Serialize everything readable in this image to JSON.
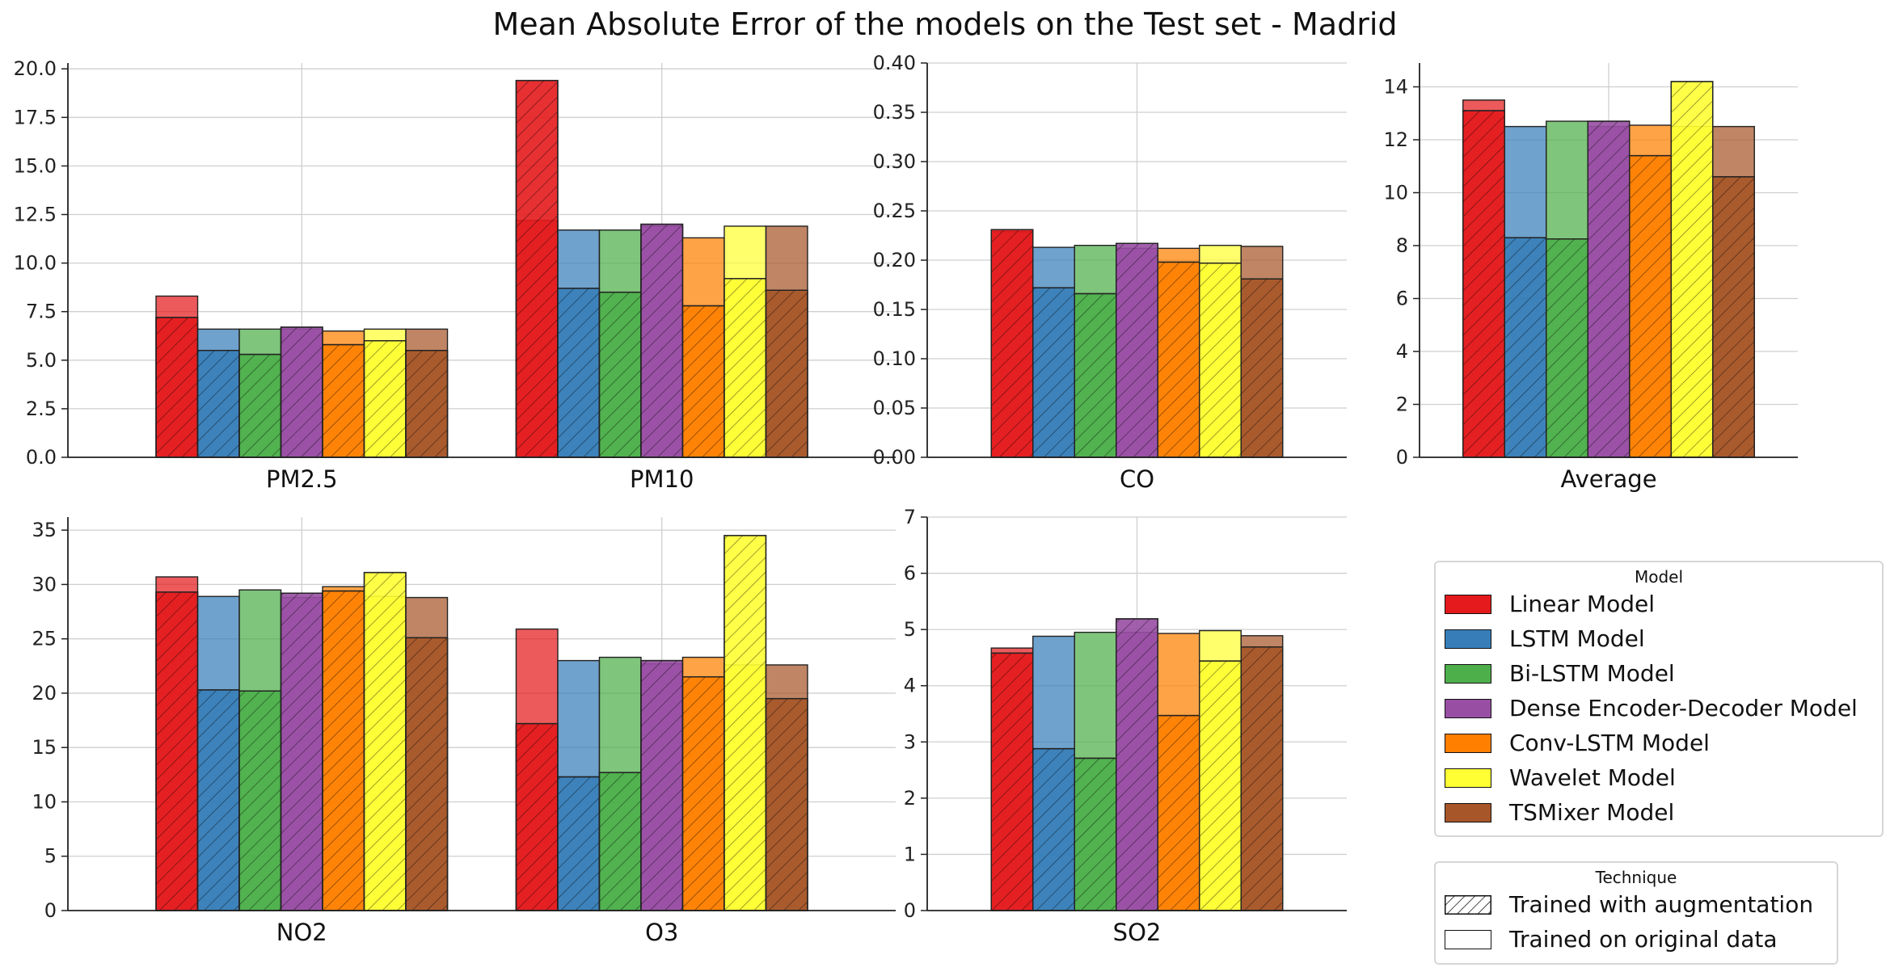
{
  "title": "Mean Absolute Error of the models on the Test set - Madrid",
  "colors": {
    "Linear Model": "#e41a1c",
    "LSTM Model": "#377eb8",
    "Bi-LSTM Model": "#4daf4a",
    "Dense Encoder-Decoder Model": "#984ea3",
    "Conv-LSTM Model": "#ff7f00",
    "Wavelet Model": "#ffff33",
    "TSMixer Model": "#a65628"
  },
  "legend_model": {
    "title": "Model",
    "items": [
      "Linear Model",
      "LSTM Model",
      "Bi-LSTM Model",
      "Dense Encoder-Decoder Model",
      "Conv-LSTM Model",
      "Wavelet Model",
      "TSMixer Model"
    ]
  },
  "legend_technique": {
    "title": "Technique",
    "augmented_label": "Trained with augmentation",
    "original_label": "Trained on original data"
  },
  "chart_data": [
    {
      "type": "bar",
      "stacked_overlay": true,
      "categories": [
        "PM2.5",
        "PM10"
      ],
      "ylim": [
        0,
        20.3
      ],
      "yticks": [
        "0.0",
        "2.5",
        "5.0",
        "7.5",
        "10.0",
        "12.5",
        "15.0",
        "17.5",
        "20.0"
      ],
      "grid": true,
      "series": [
        {
          "name": "Linear Model",
          "original": [
            8.3,
            12.2
          ],
          "augmented": [
            7.2,
            19.4
          ]
        },
        {
          "name": "LSTM Model",
          "original": [
            6.6,
            11.7
          ],
          "augmented": [
            5.5,
            8.7
          ]
        },
        {
          "name": "Bi-LSTM Model",
          "original": [
            6.6,
            11.7
          ],
          "augmented": [
            5.3,
            8.5
          ]
        },
        {
          "name": "Dense Encoder-Decoder Model",
          "original": [
            6.6,
            11.9
          ],
          "augmented": [
            6.7,
            12.0
          ]
        },
        {
          "name": "Conv-LSTM Model",
          "original": [
            6.5,
            11.3
          ],
          "augmented": [
            5.8,
            7.8
          ]
        },
        {
          "name": "Wavelet Model",
          "original": [
            6.6,
            11.9
          ],
          "augmented": [
            6.0,
            9.2
          ]
        },
        {
          "name": "TSMixer Model",
          "original": [
            6.6,
            11.9
          ],
          "augmented": [
            5.5,
            8.6
          ]
        }
      ]
    },
    {
      "type": "bar",
      "stacked_overlay": true,
      "categories": [
        "CO"
      ],
      "ylim": [
        0,
        0.4
      ],
      "yticks": [
        "0.00",
        "0.05",
        "0.10",
        "0.15",
        "0.20",
        "0.25",
        "0.30",
        "0.35",
        "0.40"
      ],
      "grid": true,
      "series": [
        {
          "name": "Linear Model",
          "original": [
            0.229
          ],
          "augmented": [
            0.231
          ]
        },
        {
          "name": "LSTM Model",
          "original": [
            0.213
          ],
          "augmented": [
            0.172
          ]
        },
        {
          "name": "Bi-LSTM Model",
          "original": [
            0.215
          ],
          "augmented": [
            0.166
          ]
        },
        {
          "name": "Dense Encoder-Decoder Model",
          "original": [
            0.212
          ],
          "augmented": [
            0.217
          ]
        },
        {
          "name": "Conv-LSTM Model",
          "original": [
            0.212
          ],
          "augmented": [
            0.198
          ]
        },
        {
          "name": "Wavelet Model",
          "original": [
            0.215
          ],
          "augmented": [
            0.197
          ]
        },
        {
          "name": "TSMixer Model",
          "original": [
            0.214
          ],
          "augmented": [
            0.181
          ]
        }
      ]
    },
    {
      "type": "bar",
      "stacked_overlay": true,
      "categories": [
        "Average"
      ],
      "ylim": [
        0,
        14.9
      ],
      "yticks": [
        "0",
        "2",
        "4",
        "6",
        "8",
        "10",
        "12",
        "14"
      ],
      "grid": true,
      "series": [
        {
          "name": "Linear Model",
          "original": [
            13.5
          ],
          "augmented": [
            13.1
          ]
        },
        {
          "name": "LSTM Model",
          "original": [
            12.5
          ],
          "augmented": [
            8.3
          ]
        },
        {
          "name": "Bi-LSTM Model",
          "original": [
            12.7
          ],
          "augmented": [
            8.25
          ]
        },
        {
          "name": "Dense Encoder-Decoder Model",
          "original": [
            12.5
          ],
          "augmented": [
            12.7
          ]
        },
        {
          "name": "Conv-LSTM Model",
          "original": [
            12.55
          ],
          "augmented": [
            11.4
          ]
        },
        {
          "name": "Wavelet Model",
          "original": [
            12.5
          ],
          "augmented": [
            14.2
          ]
        },
        {
          "name": "TSMixer Model",
          "original": [
            12.5
          ],
          "augmented": [
            10.6
          ]
        }
      ]
    },
    {
      "type": "bar",
      "stacked_overlay": true,
      "categories": [
        "NO2",
        "O3"
      ],
      "ylim": [
        0,
        36.2
      ],
      "yticks": [
        "0",
        "5",
        "10",
        "15",
        "20",
        "25",
        "30",
        "35"
      ],
      "grid": true,
      "series": [
        {
          "name": "Linear Model",
          "original": [
            30.7,
            25.9
          ],
          "augmented": [
            29.3,
            17.2
          ]
        },
        {
          "name": "LSTM Model",
          "original": [
            28.9,
            23.0
          ],
          "augmented": [
            20.3,
            12.3
          ]
        },
        {
          "name": "Bi-LSTM Model",
          "original": [
            29.5,
            23.3
          ],
          "augmented": [
            20.2,
            12.7
          ]
        },
        {
          "name": "Dense Encoder-Decoder Model",
          "original": [
            28.8,
            22.7
          ],
          "augmented": [
            29.2,
            23.0
          ]
        },
        {
          "name": "Conv-LSTM Model",
          "original": [
            29.8,
            23.3
          ],
          "augmented": [
            29.4,
            21.5
          ]
        },
        {
          "name": "Wavelet Model",
          "original": [
            28.9,
            22.6
          ],
          "augmented": [
            31.1,
            34.5
          ]
        },
        {
          "name": "TSMixer Model",
          "original": [
            28.8,
            22.6
          ],
          "augmented": [
            25.1,
            19.5
          ]
        }
      ]
    },
    {
      "type": "bar",
      "stacked_overlay": true,
      "categories": [
        "SO2"
      ],
      "ylim": [
        0,
        7
      ],
      "yticks": [
        "0",
        "1",
        "2",
        "3",
        "4",
        "5",
        "6",
        "7"
      ],
      "grid": true,
      "series": [
        {
          "name": "Linear Model",
          "original": [
            4.67
          ],
          "augmented": [
            4.58
          ]
        },
        {
          "name": "LSTM Model",
          "original": [
            4.88
          ],
          "augmented": [
            2.88
          ]
        },
        {
          "name": "Bi-LSTM Model",
          "original": [
            4.95
          ],
          "augmented": [
            2.71
          ]
        },
        {
          "name": "Dense Encoder-Decoder Model",
          "original": [
            4.95
          ],
          "augmented": [
            5.19
          ]
        },
        {
          "name": "Conv-LSTM Model",
          "original": [
            4.93
          ],
          "augmented": [
            3.47
          ]
        },
        {
          "name": "Wavelet Model",
          "original": [
            4.98
          ],
          "augmented": [
            4.44
          ]
        },
        {
          "name": "TSMixer Model",
          "original": [
            4.89
          ],
          "augmented": [
            4.69
          ]
        }
      ]
    }
  ]
}
